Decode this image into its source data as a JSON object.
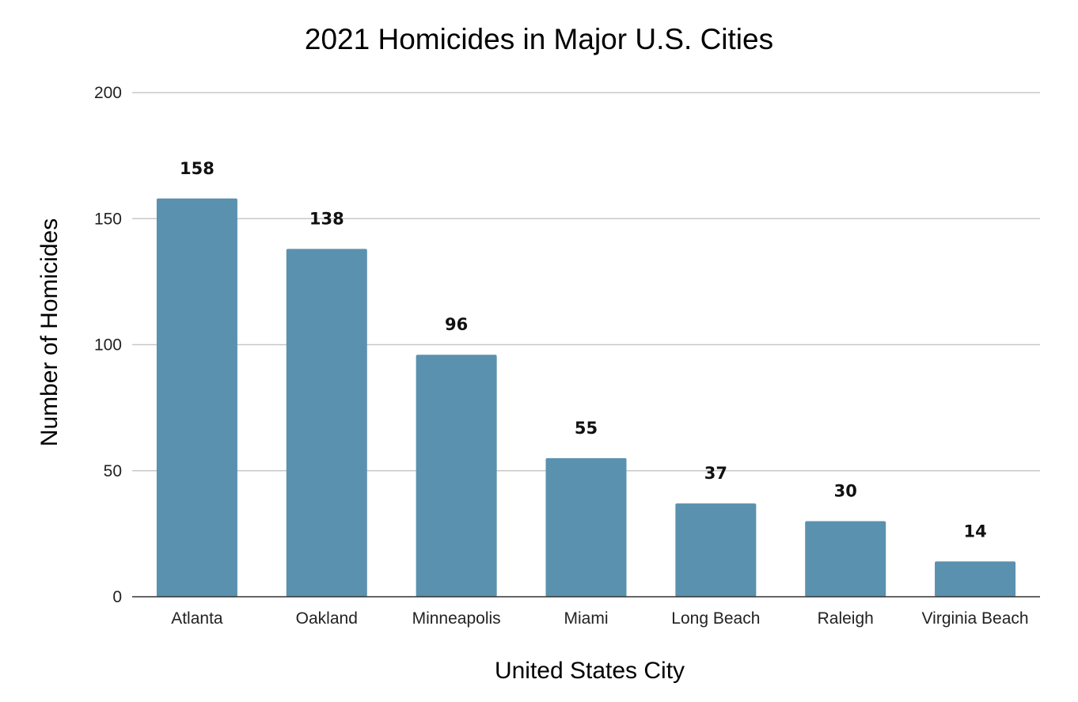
{
  "chart_data": {
    "type": "bar",
    "title": "2021 Homicides in Major U.S. Cities",
    "xlabel": "United States City",
    "ylabel": "Number of Homicides",
    "categories": [
      "Atlanta",
      "Oakland",
      "Minneapolis",
      "Miami",
      "Long Beach",
      "Raleigh",
      "Virginia Beach"
    ],
    "values": [
      158,
      138,
      96,
      55,
      37,
      30,
      14
    ],
    "ylim": [
      0,
      200
    ],
    "yticks": [
      0,
      50,
      100,
      150,
      200
    ],
    "grid": true,
    "legend": "none",
    "bar_color": "#5a91ae",
    "data_labels": true
  }
}
